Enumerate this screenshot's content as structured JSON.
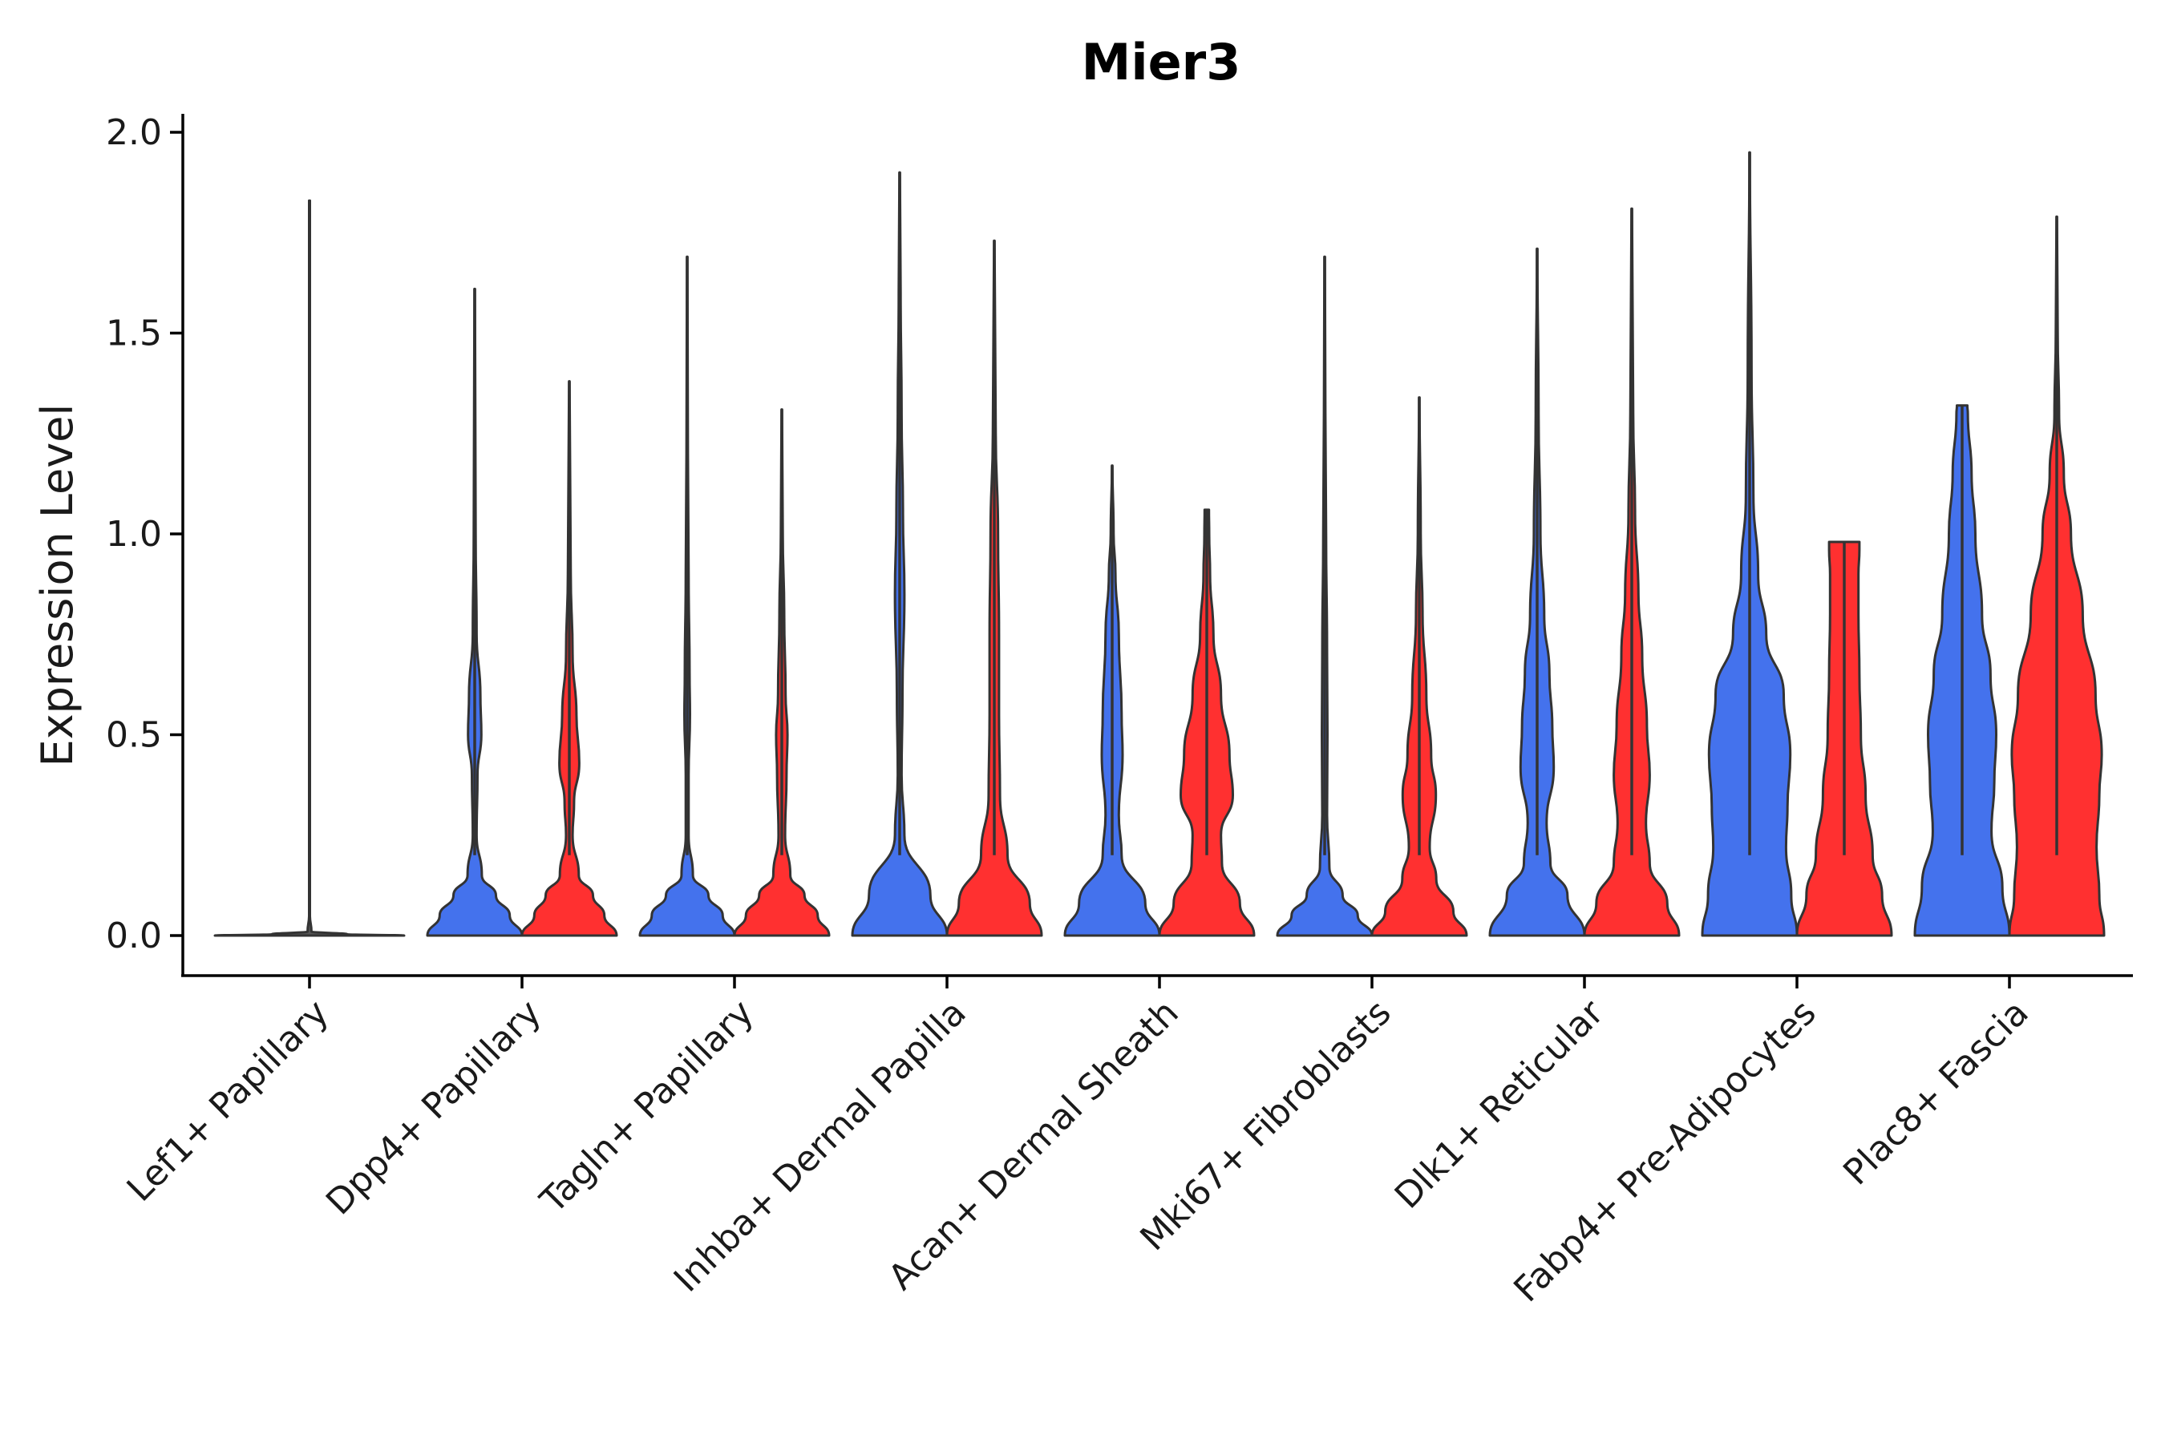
{
  "chart_data": {
    "type": "violin",
    "title": "Mier3",
    "xlabel": "",
    "ylabel": "Expression Level",
    "ylim": [
      -0.1,
      2.05
    ],
    "yticks": [
      0.0,
      0.5,
      1.0,
      1.5,
      2.0
    ],
    "ytick_labels": [
      "0.0",
      "0.5",
      "1.0",
      "1.5",
      "2.0"
    ],
    "categories": [
      "Lef1+ Papillary",
      "Dpp4+ Papillary",
      "Tagln+ Papillary",
      "Inhba+ Dermal Papilla",
      "Acan+ Dermal Sheath",
      "Mki67+ Fibroblasts",
      "Dlk1+ Reticular",
      "Fabp4+ Pre-Adipocytes",
      "Plac8+ Fascia"
    ],
    "series": [
      {
        "name": "group1",
        "color": "#4472ED",
        "violins": [
          {
            "category": "Lef1+ Papillary",
            "max": 1.83,
            "single": true,
            "color": "#555555",
            "profile": [
              [
                0.0,
                1.0
              ],
              [
                0.003,
                0.4
              ],
              [
                0.01,
                0.02
              ],
              [
                0.05,
                0.004
              ],
              [
                0.5,
                0.004
              ],
              [
                1.83,
                0.004
              ]
            ]
          },
          {
            "category": "Dpp4+ Papillary",
            "max": 1.61,
            "profile": [
              [
                0.0,
                1.0
              ],
              [
                0.05,
                0.74
              ],
              [
                0.1,
                0.45
              ],
              [
                0.15,
                0.15
              ],
              [
                0.25,
                0.04
              ],
              [
                0.4,
                0.06
              ],
              [
                0.5,
                0.14
              ],
              [
                0.6,
                0.12
              ],
              [
                0.75,
                0.04
              ],
              [
                1.0,
                0.02
              ],
              [
                1.61,
                0.005
              ]
            ]
          },
          {
            "category": "Tagln+ Papillary",
            "max": 1.69,
            "profile": [
              [
                0.0,
                1.0
              ],
              [
                0.05,
                0.75
              ],
              [
                0.1,
                0.45
              ],
              [
                0.15,
                0.12
              ],
              [
                0.25,
                0.03
              ],
              [
                0.4,
                0.03
              ],
              [
                0.55,
                0.06
              ],
              [
                0.65,
                0.05
              ],
              [
                0.9,
                0.03
              ],
              [
                1.2,
                0.015
              ],
              [
                1.69,
                0.005
              ]
            ]
          },
          {
            "category": "Inhba+ Dermal Papilla",
            "max": 1.9,
            "profile": [
              [
                0.0,
                1.0
              ],
              [
                0.1,
                0.65
              ],
              [
                0.25,
                0.1
              ],
              [
                0.4,
                0.04
              ],
              [
                0.6,
                0.06
              ],
              [
                0.85,
                0.1
              ],
              [
                1.05,
                0.07
              ],
              [
                1.3,
                0.04
              ],
              [
                1.6,
                0.02
              ],
              [
                1.9,
                0.005
              ]
            ]
          },
          {
            "category": "Acan+ Dermal Sheath",
            "max": 1.17,
            "profile": [
              [
                0.0,
                1.0
              ],
              [
                0.08,
                0.7
              ],
              [
                0.2,
                0.2
              ],
              [
                0.3,
                0.14
              ],
              [
                0.45,
                0.22
              ],
              [
                0.55,
                0.2
              ],
              [
                0.75,
                0.14
              ],
              [
                0.9,
                0.07
              ],
              [
                1.0,
                0.03
              ],
              [
                1.17,
                0.005
              ]
            ]
          },
          {
            "category": "Mki67+ Fibroblasts",
            "max": 1.69,
            "profile": [
              [
                0.0,
                1.0
              ],
              [
                0.05,
                0.7
              ],
              [
                0.1,
                0.38
              ],
              [
                0.17,
                0.1
              ],
              [
                0.3,
                0.05
              ],
              [
                0.5,
                0.06
              ],
              [
                0.7,
                0.05
              ],
              [
                1.0,
                0.03
              ],
              [
                1.3,
                0.015
              ],
              [
                1.69,
                0.005
              ]
            ]
          },
          {
            "category": "Dlk1+ Reticular",
            "max": 1.71,
            "profile": [
              [
                0.0,
                1.0
              ],
              [
                0.1,
                0.64
              ],
              [
                0.18,
                0.28
              ],
              [
                0.28,
                0.2
              ],
              [
                0.42,
                0.35
              ],
              [
                0.52,
                0.32
              ],
              [
                0.65,
                0.26
              ],
              [
                0.8,
                0.15
              ],
              [
                1.0,
                0.07
              ],
              [
                1.3,
                0.03
              ],
              [
                1.71,
                0.005
              ]
            ]
          },
          {
            "category": "Fabp4+ Pre-Adipocytes",
            "max": 1.95,
            "profile": [
              [
                0.0,
                1.0
              ],
              [
                0.1,
                0.88
              ],
              [
                0.22,
                0.77
              ],
              [
                0.32,
                0.8
              ],
              [
                0.45,
                0.86
              ],
              [
                0.6,
                0.72
              ],
              [
                0.75,
                0.35
              ],
              [
                0.9,
                0.18
              ],
              [
                1.1,
                0.08
              ],
              [
                1.4,
                0.04
              ],
              [
                1.95,
                0.005
              ]
            ]
          },
          {
            "category": "Plac8+ Fascia",
            "max": 1.32,
            "profile": [
              [
                0.0,
                1.0
              ],
              [
                0.12,
                0.85
              ],
              [
                0.26,
                0.62
              ],
              [
                0.38,
                0.68
              ],
              [
                0.5,
                0.72
              ],
              [
                0.65,
                0.6
              ],
              [
                0.8,
                0.42
              ],
              [
                1.0,
                0.28
              ],
              [
                1.15,
                0.2
              ],
              [
                1.3,
                0.12
              ],
              [
                1.32,
                0.11
              ]
            ]
          }
        ]
      },
      {
        "name": "group2",
        "color": "#FF3030",
        "violins": [
          {
            "category": "Dpp4+ Papillary",
            "max": 1.38,
            "profile": [
              [
                0.0,
                1.0
              ],
              [
                0.05,
                0.74
              ],
              [
                0.1,
                0.5
              ],
              [
                0.15,
                0.2
              ],
              [
                0.25,
                0.07
              ],
              [
                0.33,
                0.1
              ],
              [
                0.43,
                0.21
              ],
              [
                0.55,
                0.15
              ],
              [
                0.7,
                0.07
              ],
              [
                0.9,
                0.03
              ],
              [
                1.38,
                0.005
              ]
            ]
          },
          {
            "category": "Tagln+ Papillary",
            "max": 1.31,
            "profile": [
              [
                0.0,
                1.0
              ],
              [
                0.05,
                0.76
              ],
              [
                0.1,
                0.48
              ],
              [
                0.15,
                0.18
              ],
              [
                0.25,
                0.07
              ],
              [
                0.4,
                0.1
              ],
              [
                0.5,
                0.12
              ],
              [
                0.6,
                0.08
              ],
              [
                0.8,
                0.05
              ],
              [
                1.0,
                0.02
              ],
              [
                1.31,
                0.005
              ]
            ]
          },
          {
            "category": "Inhba+ Dermal Papilla",
            "max": 1.73,
            "profile": [
              [
                0.0,
                1.0
              ],
              [
                0.08,
                0.75
              ],
              [
                0.2,
                0.28
              ],
              [
                0.35,
                0.12
              ],
              [
                0.55,
                0.1
              ],
              [
                0.75,
                0.1
              ],
              [
                1.0,
                0.08
              ],
              [
                1.25,
                0.03
              ],
              [
                1.73,
                0.005
              ]
            ]
          },
          {
            "category": "Acan+ Dermal Sheath",
            "max": 1.06,
            "profile": [
              [
                0.0,
                1.0
              ],
              [
                0.08,
                0.7
              ],
              [
                0.18,
                0.32
              ],
              [
                0.25,
                0.3
              ],
              [
                0.35,
                0.55
              ],
              [
                0.45,
                0.48
              ],
              [
                0.6,
                0.3
              ],
              [
                0.75,
                0.14
              ],
              [
                0.9,
                0.07
              ],
              [
                1.0,
                0.05
              ],
              [
                1.06,
                0.045
              ]
            ]
          },
          {
            "category": "Mki67+ Fibroblasts",
            "max": 1.34,
            "profile": [
              [
                0.0,
                1.0
              ],
              [
                0.06,
                0.72
              ],
              [
                0.14,
                0.36
              ],
              [
                0.22,
                0.22
              ],
              [
                0.35,
                0.35
              ],
              [
                0.45,
                0.25
              ],
              [
                0.6,
                0.15
              ],
              [
                0.8,
                0.07
              ],
              [
                1.0,
                0.03
              ],
              [
                1.34,
                0.005
              ]
            ]
          },
          {
            "category": "Dlk1+ Reticular",
            "max": 1.81,
            "profile": [
              [
                0.0,
                1.0
              ],
              [
                0.08,
                0.75
              ],
              [
                0.18,
                0.38
              ],
              [
                0.28,
                0.3
              ],
              [
                0.4,
                0.38
              ],
              [
                0.52,
                0.32
              ],
              [
                0.7,
                0.22
              ],
              [
                0.85,
                0.14
              ],
              [
                1.05,
                0.07
              ],
              [
                1.3,
                0.03
              ],
              [
                1.81,
                0.005
              ]
            ]
          },
          {
            "category": "Fabp4+ Pre-Adipocytes",
            "max": 0.98,
            "profile": [
              [
                0.0,
                1.0
              ],
              [
                0.1,
                0.8
              ],
              [
                0.2,
                0.6
              ],
              [
                0.35,
                0.45
              ],
              [
                0.5,
                0.35
              ],
              [
                0.65,
                0.32
              ],
              [
                0.8,
                0.3
              ],
              [
                0.9,
                0.3
              ],
              [
                0.96,
                0.32
              ],
              [
                0.98,
                0.32
              ]
            ]
          },
          {
            "category": "Plac8+ Fascia",
            "max": 1.79,
            "profile": [
              [
                0.0,
                1.0
              ],
              [
                0.1,
                0.9
              ],
              [
                0.22,
                0.84
              ],
              [
                0.35,
                0.9
              ],
              [
                0.45,
                0.95
              ],
              [
                0.6,
                0.82
              ],
              [
                0.8,
                0.55
              ],
              [
                1.0,
                0.3
              ],
              [
                1.15,
                0.15
              ],
              [
                1.3,
                0.05
              ],
              [
                1.5,
                0.02
              ],
              [
                1.79,
                0.005
              ]
            ]
          }
        ]
      }
    ]
  }
}
